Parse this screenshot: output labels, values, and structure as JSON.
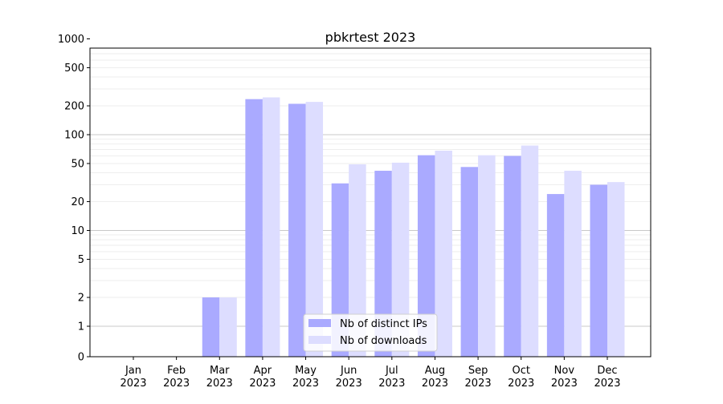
{
  "chart_data": {
    "type": "bar",
    "title": "pbkrtest 2023",
    "xlabel": "",
    "ylabel": "",
    "yscale": "symlog",
    "ylim": [
      0,
      1300
    ],
    "yticks": [
      0,
      1,
      2,
      5,
      10,
      20,
      50,
      100,
      200,
      500,
      1000
    ],
    "grid": true,
    "legend_position": "bottom-center",
    "categories": [
      "Jan\n2023",
      "Feb\n2023",
      "Mar\n2023",
      "Apr\n2023",
      "May\n2023",
      "Jun\n2023",
      "Jul\n2023",
      "Aug\n2023",
      "Sep\n2023",
      "Oct\n2023",
      "Nov\n2023",
      "Dec\n2023"
    ],
    "series": [
      {
        "name": "Nb of distinct IPs",
        "color": "#aaaaff",
        "values": [
          0,
          0,
          2,
          235,
          210,
          31,
          42,
          61,
          46,
          60,
          24,
          30
        ]
      },
      {
        "name": "Nb of downloads",
        "color": "#ddddff",
        "values": [
          0,
          0,
          2,
          245,
          220,
          49,
          51,
          68,
          61,
          77,
          42,
          32
        ]
      }
    ]
  }
}
